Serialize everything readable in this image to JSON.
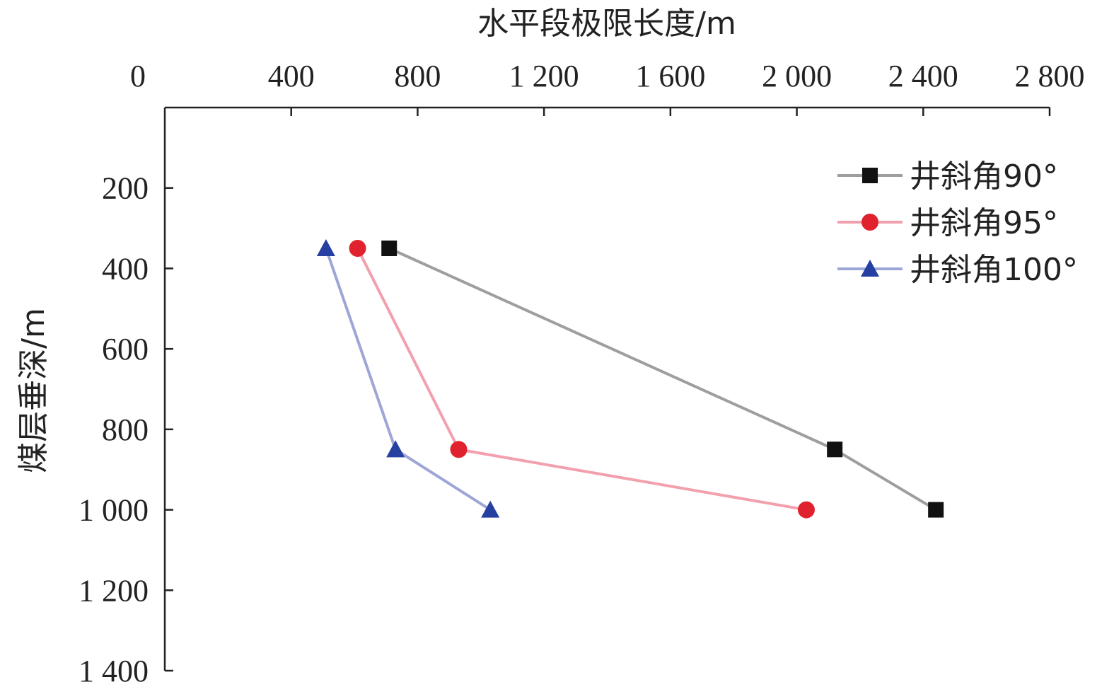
{
  "chart_data": {
    "type": "line",
    "title": "",
    "xlabel": "水平段极限长度/m",
    "ylabel": "煤层垂深/m",
    "x_axis_position": "top",
    "y_axis_inverted": true,
    "xlim": [
      0,
      2800
    ],
    "ylim": [
      0,
      1400
    ],
    "xticks": [
      0,
      400,
      800,
      1200,
      1600,
      2000,
      2400,
      2800
    ],
    "xtick_labels": [
      "0",
      "400",
      "800",
      "1 200",
      "1 600",
      "2 000",
      "2 400",
      "2 800"
    ],
    "yticks": [
      200,
      400,
      600,
      800,
      1000,
      1200,
      1400
    ],
    "ytick_labels": [
      "200",
      "400",
      "600",
      "800",
      "1 000",
      "1 200",
      "1 400"
    ],
    "grid": false,
    "legend_position": "top-right",
    "series": [
      {
        "name": "井斜角90°",
        "color": "#9e9e9e",
        "marker": "square",
        "marker_color": "#111111",
        "points": [
          [
            710,
            350
          ],
          [
            2120,
            850
          ],
          [
            2440,
            1000
          ]
        ]
      },
      {
        "name": "井斜角95°",
        "color": "#f2a0ad",
        "marker": "circle",
        "marker_color": "#e0222f",
        "points": [
          [
            610,
            350
          ],
          [
            930,
            850
          ],
          [
            2030,
            1000
          ]
        ]
      },
      {
        "name": "井斜角100°",
        "color": "#9da6d6",
        "marker": "triangle",
        "marker_color": "#2540a0",
        "points": [
          [
            510,
            350
          ],
          [
            730,
            850
          ],
          [
            1030,
            1000
          ]
        ]
      }
    ]
  }
}
